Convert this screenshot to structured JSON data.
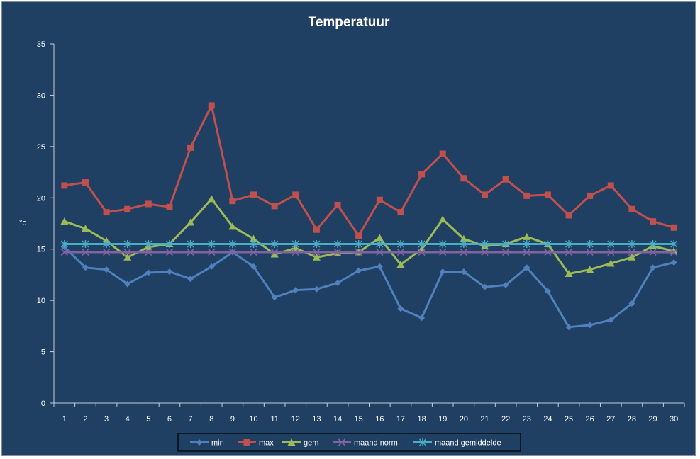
{
  "chart_data": {
    "type": "line",
    "title": "Temperatuur",
    "xlabel": "",
    "ylabel": "°c",
    "ylim": [
      0,
      35
    ],
    "yticks": [
      0,
      5,
      10,
      15,
      20,
      25,
      30,
      35
    ],
    "categories": [
      "1",
      "2",
      "3",
      "4",
      "5",
      "6",
      "7",
      "8",
      "9",
      "10",
      "11",
      "12",
      "13",
      "14",
      "15",
      "16",
      "17",
      "18",
      "19",
      "20",
      "21",
      "22",
      "23",
      "24",
      "25",
      "26",
      "27",
      "28",
      "29",
      "30"
    ],
    "grid": false,
    "legend_position": "bottom",
    "series": [
      {
        "name": "min",
        "color": "#4f81bd",
        "marker": "diamond",
        "values": [
          15.2,
          13.2,
          13.0,
          11.6,
          12.7,
          12.8,
          12.1,
          13.3,
          14.7,
          13.3,
          10.3,
          11.0,
          11.1,
          11.7,
          12.9,
          13.3,
          9.2,
          8.3,
          12.8,
          12.8,
          11.3,
          11.5,
          13.2,
          10.9,
          7.4,
          7.6,
          8.1,
          9.7,
          13.2,
          13.7
        ]
      },
      {
        "name": "max",
        "color": "#c0504d",
        "marker": "square",
        "values": [
          21.2,
          21.5,
          18.6,
          18.9,
          19.4,
          19.1,
          24.9,
          29.0,
          19.7,
          20.3,
          19.2,
          20.3,
          16.9,
          19.3,
          16.3,
          19.8,
          18.6,
          22.3,
          24.3,
          21.9,
          20.3,
          21.8,
          20.2,
          20.3,
          18.3,
          20.2,
          21.2,
          18.9,
          17.7,
          17.1
        ]
      },
      {
        "name": "gem",
        "color": "#9bbb59",
        "marker": "triangle",
        "values": [
          17.7,
          17.0,
          15.8,
          14.2,
          15.2,
          15.5,
          17.6,
          19.9,
          17.2,
          16.0,
          14.5,
          15.1,
          14.2,
          14.6,
          14.7,
          16.1,
          13.5,
          15.0,
          17.9,
          16.0,
          15.3,
          15.5,
          16.2,
          15.5,
          12.6,
          13.0,
          13.6,
          14.2,
          15.3,
          14.8
        ]
      },
      {
        "name": "maand norm",
        "color": "#8064a2",
        "marker": "x",
        "values": [
          14.7,
          14.7,
          14.7,
          14.7,
          14.7,
          14.7,
          14.7,
          14.7,
          14.7,
          14.7,
          14.7,
          14.7,
          14.7,
          14.7,
          14.7,
          14.7,
          14.7,
          14.7,
          14.7,
          14.7,
          14.7,
          14.7,
          14.7,
          14.7,
          14.7,
          14.7,
          14.7,
          14.7,
          14.7,
          14.7
        ]
      },
      {
        "name": "maand gemiddelde",
        "color": "#4bacc6",
        "marker": "star",
        "values": [
          15.5,
          15.5,
          15.5,
          15.5,
          15.5,
          15.5,
          15.5,
          15.5,
          15.5,
          15.5,
          15.5,
          15.5,
          15.5,
          15.5,
          15.5,
          15.5,
          15.5,
          15.5,
          15.5,
          15.5,
          15.5,
          15.5,
          15.5,
          15.5,
          15.5,
          15.5,
          15.5,
          15.5,
          15.5,
          15.5
        ]
      }
    ]
  }
}
